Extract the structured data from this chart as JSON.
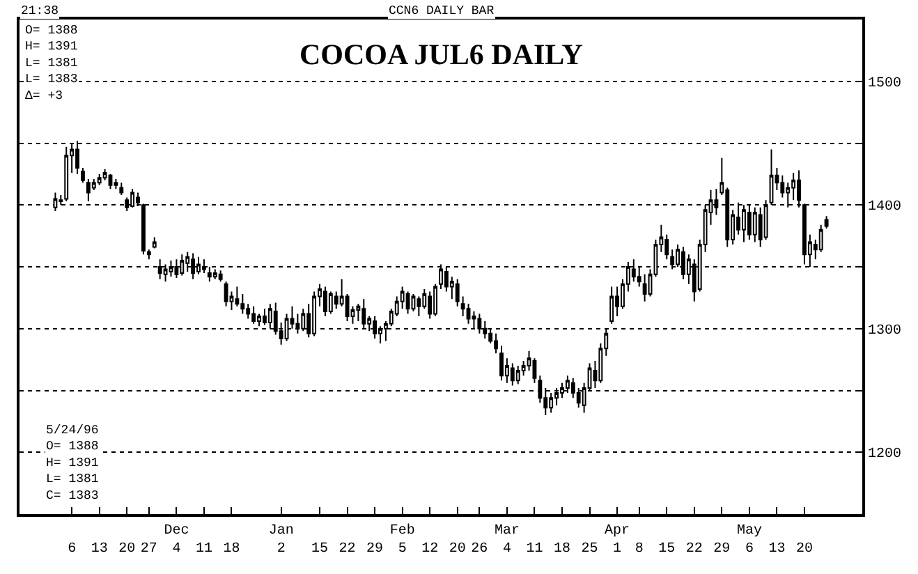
{
  "chart_data": {
    "type": "candlestick",
    "title": "COCOA JUL6 DAILY",
    "annotations": [
      "21:38",
      "CCN6 DAILY BAR",
      "O= 1388\nH= 1391\nL= 1381\nL= 1383\nΔ= +3",
      "5/24/96\nO= 1388\nH= 1391\nL= 1381\nC= 1383"
    ],
    "color": "#000000",
    "categories": [
      null,
      null,
      null,
      "6",
      null,
      null,
      null,
      null,
      "13",
      null,
      null,
      null,
      null,
      "20",
      null,
      null,
      null,
      "27",
      null,
      null,
      null,
      null,
      "Dec\n4",
      null,
      null,
      null,
      null,
      "11",
      null,
      null,
      null,
      null,
      "18",
      null,
      null,
      null,
      null,
      null,
      null,
      null,
      null,
      "Jan\n2",
      null,
      null,
      null,
      null,
      null,
      null,
      "15",
      null,
      null,
      null,
      null,
      "22",
      null,
      null,
      null,
      null,
      "29",
      null,
      null,
      null,
      null,
      "Feb\n5",
      null,
      null,
      null,
      null,
      "12",
      null,
      null,
      null,
      null,
      "20",
      null,
      null,
      null,
      "26",
      null,
      null,
      null,
      null,
      "Mar\n4",
      null,
      null,
      null,
      null,
      "11",
      null,
      null,
      null,
      null,
      "18",
      null,
      null,
      null,
      null,
      "25",
      null,
      null,
      null,
      null,
      "Apr\n1",
      null,
      null,
      null,
      "8",
      null,
      null,
      null,
      null,
      "15",
      null,
      null,
      null,
      null,
      "22",
      null,
      null,
      null,
      null,
      "29",
      null,
      null,
      null,
      null,
      "May\n6",
      null,
      null,
      null,
      null,
      "13",
      null,
      null,
      null,
      null,
      "20",
      null,
      null,
      null,
      null
    ],
    "ohlc": [
      [
        1398,
        1410,
        1395,
        1405
      ],
      [
        1404,
        1408,
        1400,
        1403
      ],
      [
        1405,
        1447,
        1403,
        1440
      ],
      [
        1440,
        1450,
        1426,
        1445
      ],
      [
        1445,
        1452,
        1425,
        1430
      ],
      [
        1427,
        1430,
        1418,
        1420
      ],
      [
        1418,
        1421,
        1403,
        1410
      ],
      [
        1414,
        1421,
        1412,
        1418
      ],
      [
        1418,
        1425,
        1416,
        1422
      ],
      [
        1422,
        1429,
        1420,
        1426
      ],
      [
        1424,
        1425,
        1413,
        1416
      ],
      [
        1416,
        1421,
        1413,
        1418
      ],
      [
        1414,
        1418,
        1408,
        1410
      ],
      [
        1404,
        1406,
        1395,
        1398
      ],
      [
        1399,
        1413,
        1398,
        1410
      ],
      [
        1406,
        1410,
        1399,
        1402
      ],
      [
        1400,
        1401,
        1360,
        1363
      ],
      [
        1362,
        1364,
        1356,
        1360
      ],
      [
        1366,
        1374,
        1365,
        1370
      ],
      [
        1350,
        1356,
        1340,
        1345
      ],
      [
        1344,
        1352,
        1338,
        1348
      ],
      [
        1346,
        1355,
        1342,
        1350
      ],
      [
        1350,
        1356,
        1341,
        1344
      ],
      [
        1345,
        1360,
        1343,
        1355
      ],
      [
        1353,
        1362,
        1346,
        1358
      ],
      [
        1356,
        1361,
        1340,
        1345
      ],
      [
        1346,
        1358,
        1344,
        1352
      ],
      [
        1350,
        1356,
        1345,
        1348
      ],
      [
        1345,
        1350,
        1338,
        1342
      ],
      [
        1342,
        1348,
        1340,
        1345
      ],
      [
        1344,
        1347,
        1338,
        1340
      ],
      [
        1336,
        1338,
        1318,
        1322
      ],
      [
        1322,
        1330,
        1315,
        1326
      ],
      [
        1324,
        1334,
        1318,
        1320
      ],
      [
        1320,
        1328,
        1312,
        1316
      ],
      [
        1316,
        1320,
        1308,
        1312
      ],
      [
        1312,
        1318,
        1304,
        1306
      ],
      [
        1306,
        1312,
        1302,
        1310
      ],
      [
        1310,
        1316,
        1303,
        1305
      ],
      [
        1305,
        1320,
        1300,
        1316
      ],
      [
        1314,
        1321,
        1295,
        1298
      ],
      [
        1298,
        1305,
        1287,
        1292
      ],
      [
        1292,
        1312,
        1290,
        1308
      ],
      [
        1308,
        1318,
        1300,
        1304
      ],
      [
        1304,
        1312,
        1296,
        1300
      ],
      [
        1300,
        1316,
        1298,
        1312
      ],
      [
        1312,
        1320,
        1293,
        1296
      ],
      [
        1296,
        1330,
        1294,
        1326
      ],
      [
        1326,
        1336,
        1318,
        1332
      ],
      [
        1330,
        1334,
        1310,
        1314
      ],
      [
        1314,
        1330,
        1312,
        1328
      ],
      [
        1326,
        1330,
        1316,
        1320
      ],
      [
        1320,
        1340,
        1318,
        1326
      ],
      [
        1326,
        1328,
        1306,
        1310
      ],
      [
        1310,
        1318,
        1304,
        1315
      ],
      [
        1315,
        1320,
        1306,
        1318
      ],
      [
        1316,
        1324,
        1300,
        1304
      ],
      [
        1304,
        1310,
        1298,
        1308
      ],
      [
        1306,
        1310,
        1292,
        1296
      ],
      [
        1296,
        1302,
        1288,
        1300
      ],
      [
        1300,
        1306,
        1290,
        1304
      ],
      [
        1304,
        1316,
        1302,
        1314
      ],
      [
        1312,
        1326,
        1310,
        1322
      ],
      [
        1322,
        1334,
        1316,
        1330
      ],
      [
        1328,
        1330,
        1312,
        1316
      ],
      [
        1316,
        1328,
        1314,
        1326
      ],
      [
        1324,
        1326,
        1310,
        1318
      ],
      [
        1318,
        1332,
        1316,
        1328
      ],
      [
        1326,
        1330,
        1308,
        1312
      ],
      [
        1312,
        1336,
        1310,
        1334
      ],
      [
        1336,
        1352,
        1332,
        1348
      ],
      [
        1346,
        1350,
        1330,
        1334
      ],
      [
        1334,
        1342,
        1324,
        1338
      ],
      [
        1336,
        1340,
        1318,
        1322
      ],
      [
        1320,
        1326,
        1310,
        1316
      ],
      [
        1316,
        1320,
        1304,
        1308
      ],
      [
        1308,
        1314,
        1300,
        1310
      ],
      [
        1308,
        1312,
        1296,
        1300
      ],
      [
        1300,
        1306,
        1292,
        1296
      ],
      [
        1296,
        1300,
        1288,
        1290
      ],
      [
        1290,
        1296,
        1280,
        1284
      ],
      [
        1280,
        1286,
        1258,
        1262
      ],
      [
        1262,
        1276,
        1256,
        1270
      ],
      [
        1268,
        1272,
        1254,
        1258
      ],
      [
        1258,
        1270,
        1255,
        1266
      ],
      [
        1266,
        1274,
        1262,
        1270
      ],
      [
        1270,
        1282,
        1266,
        1276
      ],
      [
        1274,
        1276,
        1256,
        1260
      ],
      [
        1258,
        1262,
        1240,
        1244
      ],
      [
        1244,
        1252,
        1230,
        1236
      ],
      [
        1236,
        1248,
        1232,
        1244
      ],
      [
        1244,
        1252,
        1238,
        1248
      ],
      [
        1248,
        1256,
        1244,
        1252
      ],
      [
        1252,
        1262,
        1248,
        1258
      ],
      [
        1256,
        1260,
        1244,
        1248
      ],
      [
        1248,
        1252,
        1236,
        1240
      ],
      [
        1238,
        1256,
        1232,
        1252
      ],
      [
        1252,
        1272,
        1250,
        1268
      ],
      [
        1266,
        1274,
        1252,
        1258
      ],
      [
        1258,
        1288,
        1256,
        1284
      ],
      [
        1284,
        1300,
        1278,
        1296
      ],
      [
        1306,
        1334,
        1304,
        1326
      ],
      [
        1326,
        1334,
        1310,
        1318
      ],
      [
        1318,
        1340,
        1316,
        1336
      ],
      [
        1336,
        1354,
        1330,
        1350
      ],
      [
        1348,
        1356,
        1338,
        1342
      ],
      [
        1342,
        1350,
        1334,
        1338
      ],
      [
        1336,
        1344,
        1322,
        1328
      ],
      [
        1328,
        1348,
        1326,
        1344
      ],
      [
        1344,
        1372,
        1342,
        1368
      ],
      [
        1368,
        1384,
        1362,
        1374
      ],
      [
        1372,
        1376,
        1356,
        1360
      ],
      [
        1358,
        1364,
        1348,
        1352
      ],
      [
        1352,
        1368,
        1350,
        1364
      ],
      [
        1362,
        1366,
        1340,
        1344
      ],
      [
        1344,
        1360,
        1336,
        1356
      ],
      [
        1352,
        1356,
        1322,
        1330
      ],
      [
        1332,
        1372,
        1330,
        1368
      ],
      [
        1368,
        1400,
        1362,
        1396
      ],
      [
        1394,
        1412,
        1384,
        1404
      ],
      [
        1404,
        1413,
        1392,
        1398
      ],
      [
        1410,
        1438,
        1408,
        1418
      ],
      [
        1412,
        1414,
        1366,
        1372
      ],
      [
        1372,
        1396,
        1368,
        1392
      ],
      [
        1390,
        1402,
        1376,
        1380
      ],
      [
        1380,
        1400,
        1370,
        1396
      ],
      [
        1394,
        1400,
        1372,
        1376
      ],
      [
        1376,
        1398,
        1370,
        1394
      ],
      [
        1392,
        1398,
        1366,
        1372
      ],
      [
        1374,
        1404,
        1372,
        1400
      ],
      [
        1402,
        1445,
        1400,
        1424
      ],
      [
        1424,
        1430,
        1412,
        1418
      ],
      [
        1418,
        1424,
        1406,
        1410
      ],
      [
        1410,
        1418,
        1398,
        1414
      ],
      [
        1414,
        1426,
        1404,
        1420
      ],
      [
        1420,
        1428,
        1398,
        1404
      ],
      [
        1400,
        1401,
        1352,
        1360
      ],
      [
        1360,
        1376,
        1350,
        1370
      ],
      [
        1368,
        1372,
        1356,
        1364
      ],
      [
        1364,
        1384,
        1362,
        1380
      ],
      [
        1388,
        1391,
        1381,
        1383
      ]
    ],
    "ylim": [
      1150,
      1550
    ],
    "yticks": [
      1200,
      {
        "value": 1250,
        "label": null
      },
      1300,
      {
        "value": 1350,
        "label": null
      },
      1400,
      {
        "value": 1450,
        "label": null
      },
      1500
    ],
    "grid": "y"
  }
}
